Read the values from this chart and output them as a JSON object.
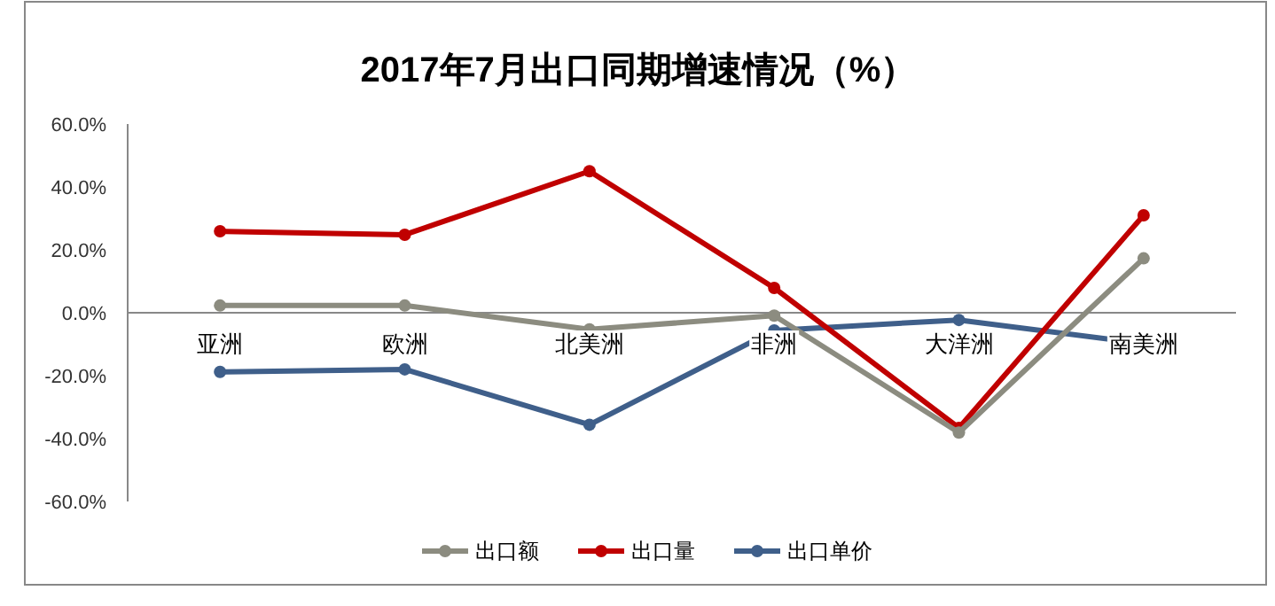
{
  "chart_data": {
    "type": "line",
    "title": "2017年7月出口同期增速情况（%）",
    "categories": [
      "亚洲",
      "欧洲",
      "北美洲",
      "非洲",
      "大洋洲",
      "南美洲"
    ],
    "series": [
      {
        "name": "出口额",
        "color": "#8c8c80",
        "values": [
          2.3,
          2.3,
          -5.3,
          -0.9,
          -38.1,
          17.3
        ]
      },
      {
        "name": "出口量",
        "color": "#c00000",
        "values": [
          25.9,
          24.8,
          45,
          7.9,
          -36.6,
          31.0
        ]
      },
      {
        "name": "出口单价",
        "color": "#3f5f8a",
        "values": [
          -18.8,
          -18.0,
          -35.6,
          -5.6,
          -2.3,
          -9.8
        ]
      }
    ],
    "ylim": [
      -60,
      60
    ],
    "yticks": [
      {
        "value": -60,
        "label": "-60.0%"
      },
      {
        "value": -40,
        "label": "-40.0%"
      },
      {
        "value": -20,
        "label": "-20.0%"
      },
      {
        "value": 0,
        "label": "0.0%"
      },
      {
        "value": 20,
        "label": "20.0%"
      },
      {
        "value": 40,
        "label": "40.0%"
      },
      {
        "value": 60,
        "label": "60.0%"
      }
    ],
    "marker": "circle",
    "line_style": "solid",
    "grid": false,
    "legend": "bottom"
  }
}
